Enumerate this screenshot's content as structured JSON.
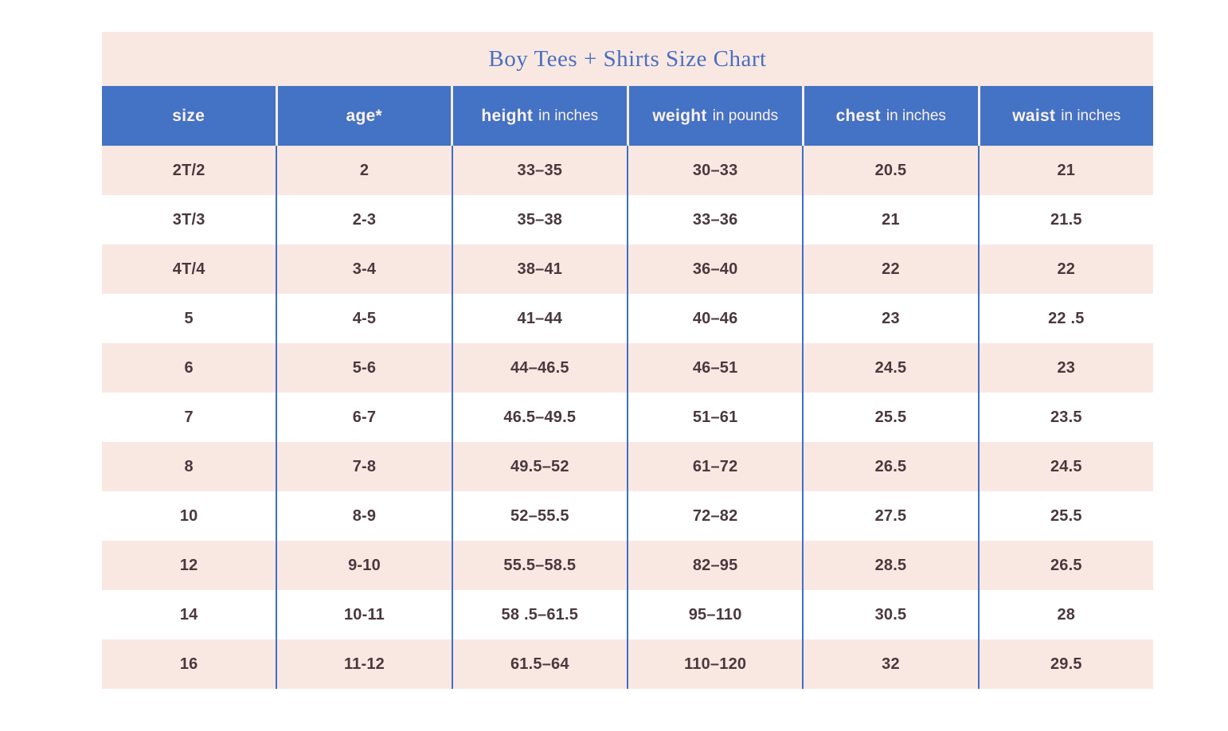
{
  "chart_data": {
    "type": "table",
    "title": "Boy Tees + Shirts Size Chart",
    "columns": [
      {
        "key": "size",
        "label": "size",
        "sublabel": ""
      },
      {
        "key": "age",
        "label": "age*",
        "sublabel": ""
      },
      {
        "key": "height",
        "label": "height",
        "sublabel": "in inches"
      },
      {
        "key": "weight",
        "label": "weight",
        "sublabel": "in pounds"
      },
      {
        "key": "chest",
        "label": "chest",
        "sublabel": "in inches"
      },
      {
        "key": "waist",
        "label": "waist",
        "sublabel": "in inches"
      }
    ],
    "rows": [
      [
        "2T/2",
        "2",
        "33–35",
        "30–33",
        "20.5",
        "21"
      ],
      [
        "3T/3",
        "2-3",
        "35–38",
        "33–36",
        "21",
        "21.5"
      ],
      [
        "4T/4",
        "3-4",
        "38–41",
        "36–40",
        "22",
        "22"
      ],
      [
        "5",
        "4-5",
        "41–44",
        "40–46",
        "23",
        "22 .5"
      ],
      [
        "6",
        "5-6",
        "44–46.5",
        "46–51",
        "24.5",
        "23"
      ],
      [
        "7",
        "6-7",
        "46.5–49.5",
        "51–61",
        "25.5",
        "23.5"
      ],
      [
        "8",
        "7-8",
        "49.5–52",
        "61–72",
        "26.5",
        "24.5"
      ],
      [
        "10",
        "8-9",
        "52–55.5",
        "72–82",
        "27.5",
        "25.5"
      ],
      [
        "12",
        "9-10",
        "55.5–58.5",
        "82–95",
        "28.5",
        "26.5"
      ],
      [
        "14",
        "10-11",
        "58 .5–61.5",
        "95–110",
        "30.5",
        "28"
      ],
      [
        "16",
        "11-12",
        "61.5–64",
        "110–120",
        "32",
        "29.5"
      ]
    ],
    "layout": {
      "alternating_row_colors": true,
      "first_data_row_shaded": true
    }
  },
  "colors": {
    "band_pink": "#f9e8e2",
    "header_blue": "#4472c4",
    "divider_blue": "#3f6ec6",
    "title_text_blue": "#4a6fc0",
    "body_text": "#4a383e",
    "header_text": "#fbf2ee",
    "page_background": "#ffffff"
  }
}
